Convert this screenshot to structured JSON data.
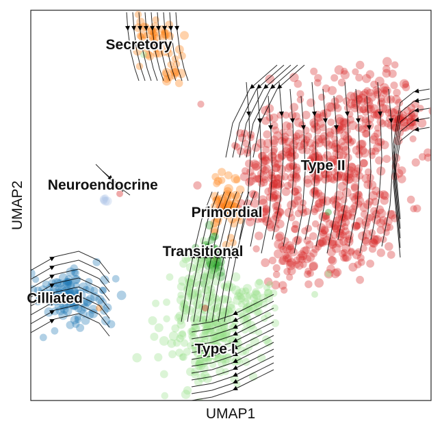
{
  "chart_data": {
    "type": "scatter",
    "title": "",
    "xlabel": "UMAP1",
    "ylabel": "UMAP2",
    "xlim": [
      0,
      100
    ],
    "ylim": [
      0,
      100
    ],
    "grid": false,
    "legend": "none (labels placed on clusters)",
    "clusters": [
      {
        "name": "Secretory",
        "color": "#ff7f0e",
        "center": [
          24,
          91
        ],
        "label_at": [
          27,
          91
        ]
      },
      {
        "name": "Neuroendocrine",
        "color": "#aec7e8",
        "center": [
          19,
          52
        ],
        "label_at": [
          18,
          55
        ]
      },
      {
        "name": "Cilliated",
        "color": "#1f77b4",
        "center": [
          9,
          25
        ],
        "label_at": [
          6,
          26
        ]
      },
      {
        "name": "Primordial",
        "color": "#ff7f0e",
        "center": [
          49,
          49
        ],
        "label_at": [
          49,
          48
        ]
      },
      {
        "name": "Transitional",
        "color": "#2ca02c",
        "center": [
          45,
          37
        ],
        "label_at": [
          43,
          38
        ]
      },
      {
        "name": "Type II",
        "color": "#d62728",
        "center": [
          72,
          62
        ],
        "label_at": [
          73,
          60
        ]
      },
      {
        "name": "Type I",
        "color": "#98df8a",
        "center": [
          51,
          17
        ],
        "label_at": [
          46,
          13
        ]
      }
    ],
    "overlay": "velocity streamlines (black, with arrowheads)"
  }
}
